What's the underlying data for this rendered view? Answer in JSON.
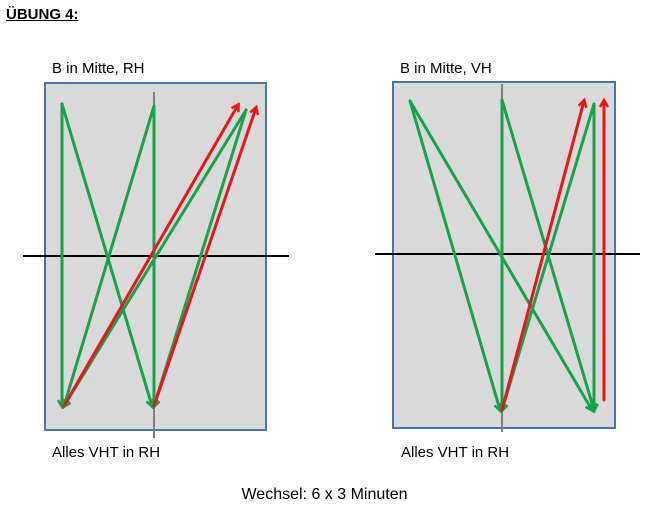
{
  "title": "ÜBUNG 4:",
  "diagrams": [
    {
      "label_top": "B in Mitte, RH",
      "label_bottom": "Alles VHT in RH"
    },
    {
      "label_top": "B in Mitte, VH",
      "label_bottom": "Alles VHT in RH"
    }
  ],
  "caption": "Wechsel: 6 x 3 Minuten",
  "colors": {
    "court": "#d9d9d9",
    "court_border": "#4a72b0",
    "center_line": "#7f7f7f",
    "net": "#000000",
    "green_path": "#16a34a",
    "red_path": "#e8161b"
  }
}
